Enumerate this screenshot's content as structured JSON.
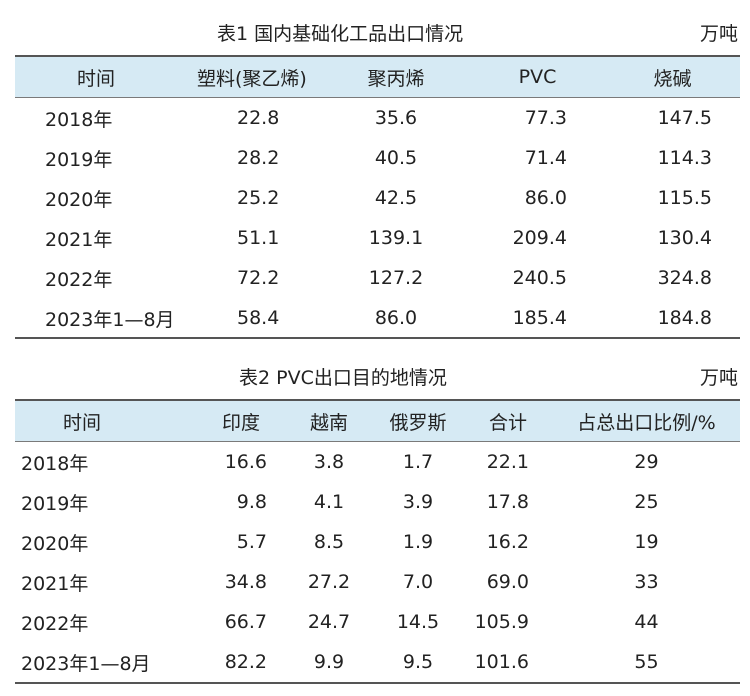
{
  "table1": {
    "caption": "表1  国内基础化工品出口情况",
    "unit": "万吨",
    "headers": [
      "时间",
      "塑料(聚乙烯)",
      "聚丙烯",
      "PVC",
      "烧碱"
    ],
    "rows": [
      [
        "2018年",
        "22.8",
        "35.6",
        "77.3",
        "147.5"
      ],
      [
        "2019年",
        "28.2",
        "40.5",
        "71.4",
        "114.3"
      ],
      [
        "2020年",
        "25.2",
        "42.5",
        "86.0",
        "115.5"
      ],
      [
        "2021年",
        "51.1",
        "139.1",
        "209.4",
        "130.4"
      ],
      [
        "2022年",
        "72.2",
        "127.2",
        "240.5",
        "324.8"
      ],
      [
        "2023年1—8月",
        "58.4",
        "86.0",
        "185.4",
        "184.8"
      ]
    ]
  },
  "table2": {
    "caption": "表2  PVC出口目的地情况",
    "unit": "万吨",
    "headers": [
      "时间",
      "印度",
      "越南",
      "俄罗斯",
      "合计",
      "占总出口比例/%"
    ],
    "rows": [
      [
        "2018年",
        "16.6",
        "3.8",
        "1.7",
        "22.1",
        "29"
      ],
      [
        "2019年",
        "9.8",
        "4.1",
        "3.9",
        "17.8",
        "25"
      ],
      [
        "2020年",
        "5.7",
        "8.5",
        "1.9",
        "16.2",
        "19"
      ],
      [
        "2021年",
        "34.8",
        "27.2",
        "7.0",
        "69.0",
        "33"
      ],
      [
        "2022年",
        "66.7",
        "24.7",
        "14.5",
        "105.9",
        "44"
      ],
      [
        "2023年1—8月",
        "82.2",
        "9.9",
        "9.5",
        "101.6",
        "55"
      ]
    ]
  }
}
